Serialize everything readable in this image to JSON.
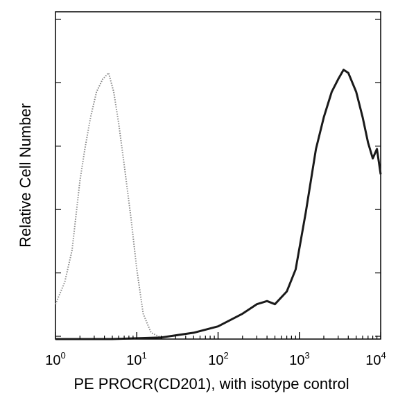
{
  "chart_data": {
    "type": "line",
    "title": "",
    "xlabel": "PE PROCR(CD201), with isotype control",
    "ylabel": "Relative Cell Number",
    "x_scale": "log",
    "xlim": [
      1,
      10000
    ],
    "ylim": [
      0,
      100
    ],
    "x_ticks": [
      {
        "base": "10",
        "exp": "0"
      },
      {
        "base": "10",
        "exp": "1"
      },
      {
        "base": "10",
        "exp": "2"
      },
      {
        "base": "10",
        "exp": "3"
      },
      {
        "base": "10",
        "exp": "4"
      }
    ],
    "y_ticks_labeled": false,
    "grid": false,
    "legend": "none",
    "series": [
      {
        "style": "dotted",
        "color": "#8a8a8a",
        "points": [
          [
            1.0,
            11
          ],
          [
            1.3,
            18
          ],
          [
            1.6,
            28
          ],
          [
            2.0,
            50
          ],
          [
            2.3,
            60
          ],
          [
            2.7,
            70
          ],
          [
            3.2,
            78
          ],
          [
            3.8,
            82
          ],
          [
            4.5,
            84
          ],
          [
            5.2,
            78
          ],
          [
            6.0,
            68
          ],
          [
            7.0,
            55
          ],
          [
            8.5,
            38
          ],
          [
            10.0,
            22
          ],
          [
            12.0,
            8
          ],
          [
            15.0,
            2
          ],
          [
            20.0,
            0.5
          ]
        ]
      },
      {
        "style": "solid",
        "color": "#1a1a1a",
        "points": [
          [
            1.0,
            0
          ],
          [
            5.0,
            0
          ],
          [
            20.0,
            0.5
          ],
          [
            50.0,
            2
          ],
          [
            100.0,
            4
          ],
          [
            200.0,
            8
          ],
          [
            300.0,
            11
          ],
          [
            400.0,
            12
          ],
          [
            500.0,
            11
          ],
          [
            700.0,
            15
          ],
          [
            900.0,
            22
          ],
          [
            1200.0,
            40
          ],
          [
            1600.0,
            60
          ],
          [
            2000.0,
            70
          ],
          [
            2500.0,
            78
          ],
          [
            3000.0,
            82
          ],
          [
            3500.0,
            85
          ],
          [
            4000.0,
            84
          ],
          [
            5000.0,
            78
          ],
          [
            6000.0,
            70
          ],
          [
            7000.0,
            62
          ],
          [
            8000.0,
            57
          ],
          [
            9000.0,
            60
          ],
          [
            10000.0,
            52
          ]
        ]
      }
    ]
  }
}
